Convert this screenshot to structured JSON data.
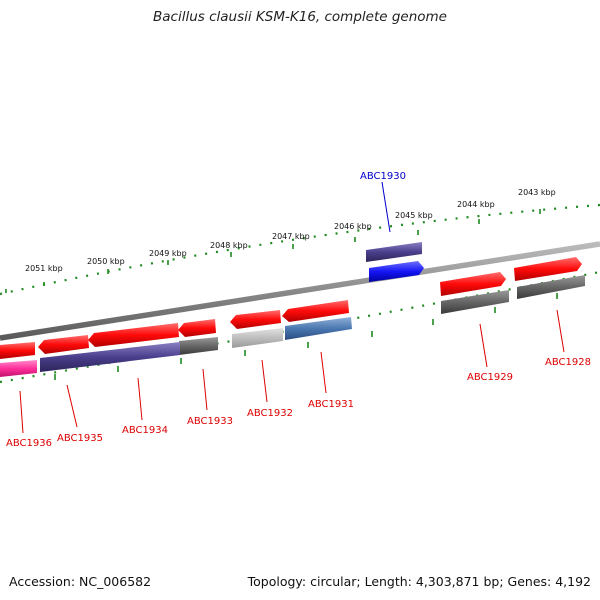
{
  "title": "Bacillus clausii KSM-K16, complete genome",
  "footer": {
    "accession": "Accession: NC_006582",
    "summary": "Topology: circular; Length: 4,303,871 bp; Genes: 4,192"
  },
  "kbp_labels": [
    "2043 kbp",
    "2044 kbp",
    "2045 kbp",
    "2046 kbp",
    "2047 kbp",
    "2048 kbp",
    "2049 kbp",
    "2050 kbp",
    "2051 kbp"
  ],
  "colors": {
    "forward_cds": "#ff1010",
    "rna_highlight": "#3030ee",
    "cog_purple": "#4a3f8c",
    "cog_grey": "#666666",
    "cog_pink": "#ff2f9a",
    "backbone": "#888888",
    "tick": "#1f8a1f",
    "label_red": "#dd0000",
    "label_blue": "#0000cc"
  },
  "genes": [
    {
      "name": "ABC1930",
      "color": "blue"
    },
    {
      "name": "ABC1928",
      "color": "red"
    },
    {
      "name": "ABC1929",
      "color": "red"
    },
    {
      "name": "ABC1931",
      "color": "red"
    },
    {
      "name": "ABC1932",
      "color": "red"
    },
    {
      "name": "ABC1933",
      "color": "red"
    },
    {
      "name": "ABC1934",
      "color": "red"
    },
    {
      "name": "ABC1935",
      "color": "red"
    },
    {
      "name": "ABC1936",
      "color": "red"
    }
  ]
}
